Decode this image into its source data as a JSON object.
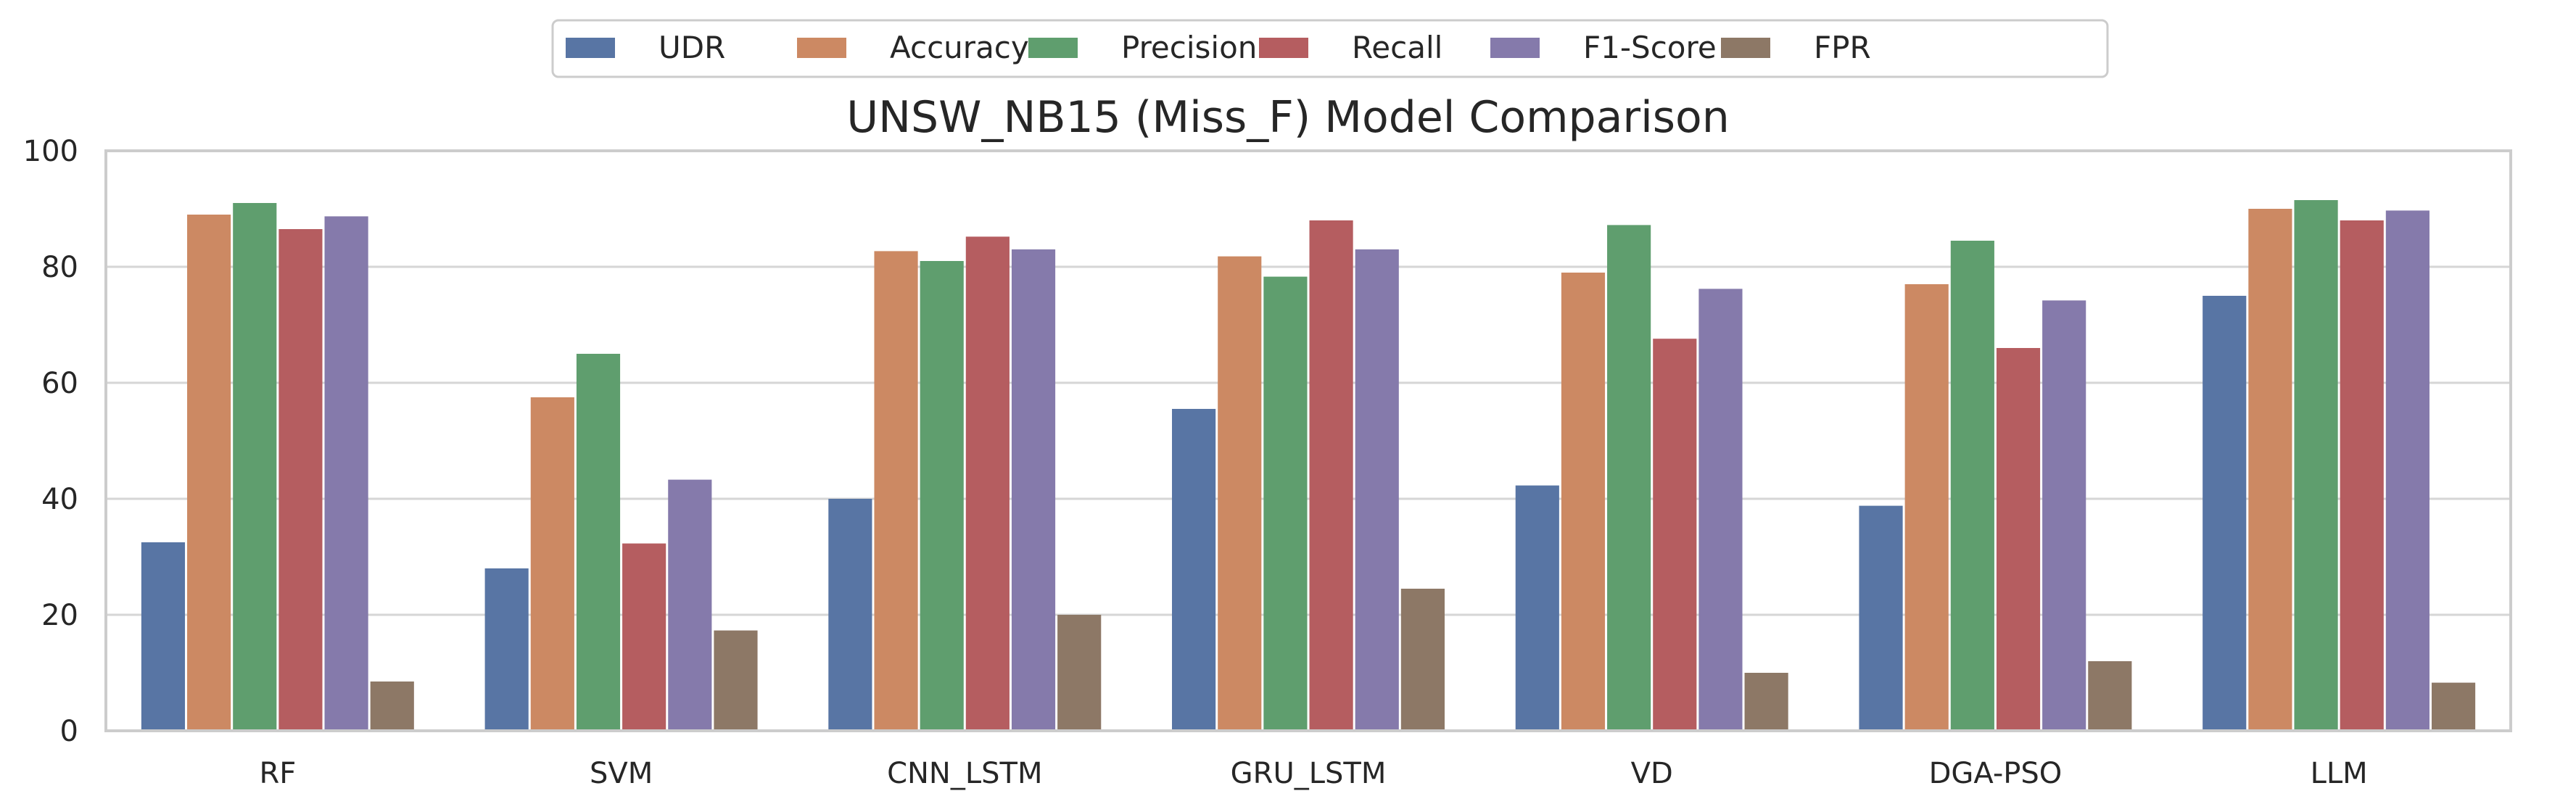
{
  "chart_data": {
    "type": "bar",
    "title": "UNSW_NB15 (Miss_F) Model Comparison",
    "xlabel": "",
    "ylabel": "",
    "ylim": [
      0,
      100
    ],
    "yticks": [
      0,
      20,
      40,
      60,
      80,
      100
    ],
    "grid": "horizontal",
    "legend_position": "top-center",
    "categories": [
      "RF",
      "SVM",
      "CNN_LSTM",
      "GRU_LSTM",
      "VD",
      "DGA-PSO",
      "LLM"
    ],
    "series": [
      {
        "name": "UDR",
        "color": "#5875a4",
        "values": [
          32.5,
          28.0,
          40.0,
          55.5,
          42.3,
          38.8,
          75.0
        ]
      },
      {
        "name": "Accuracy",
        "color": "#cc8963",
        "values": [
          89.0,
          57.5,
          82.7,
          81.8,
          79.0,
          77.0,
          90.0
        ]
      },
      {
        "name": "Precision",
        "color": "#5f9e6e",
        "values": [
          91.0,
          65.0,
          81.0,
          78.3,
          87.2,
          84.5,
          91.5
        ]
      },
      {
        "name": "Recall",
        "color": "#b55d60",
        "values": [
          86.5,
          32.3,
          85.2,
          88.0,
          67.6,
          66.0,
          88.0
        ]
      },
      {
        "name": "F1-Score",
        "color": "#857aab",
        "values": [
          88.7,
          43.3,
          83.0,
          83.0,
          76.2,
          74.2,
          89.7
        ]
      },
      {
        "name": "FPR",
        "color": "#8d7866",
        "values": [
          8.5,
          17.3,
          20.0,
          24.5,
          10.0,
          12.0,
          8.3
        ]
      }
    ]
  }
}
